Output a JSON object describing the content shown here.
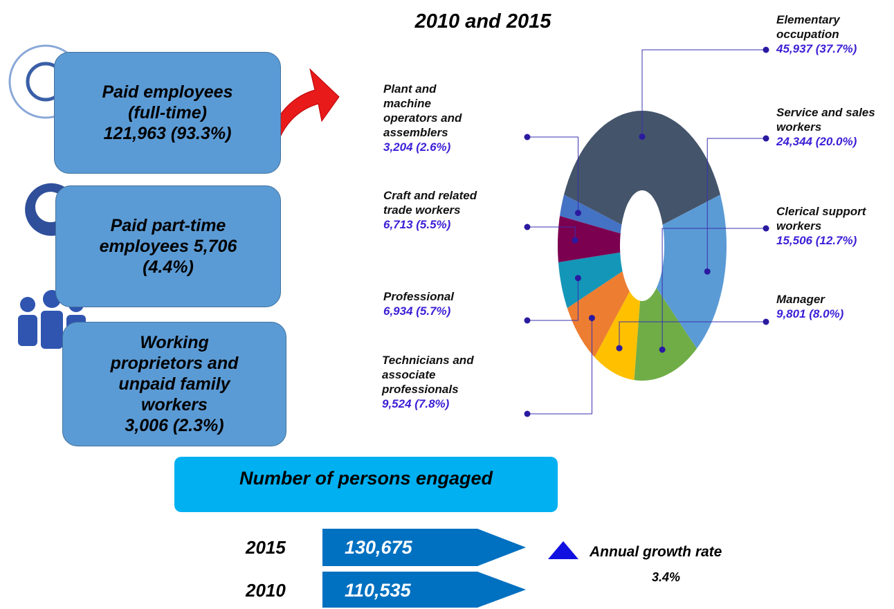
{
  "boxes": [
    {
      "label": "Paid employees (full-time)",
      "value": "121,963 (93.3%)"
    },
    {
      "label": "Paid part-time employees 5,706",
      "value": "(4.4%)"
    },
    {
      "label": "Working proprietors and unpaid family workers",
      "value": "3,006 (2.3%)"
    }
  ],
  "persons_engaged": {
    "title": "Number of persons engaged",
    "rows": [
      {
        "year": "2015",
        "value": "130,675"
      },
      {
        "year": "2010",
        "value": "110,535"
      }
    ],
    "growth_label": "Annual growth rate",
    "growth_value": "3.4%"
  },
  "chart_data": {
    "type": "pie",
    "title": "2010 and 2015",
    "categories": [
      "Elementary occupation",
      "Service and sales workers",
      "Clerical support workers",
      "Manager",
      "Technicians and associate professionals",
      "Professional",
      "Craft and related trade workers",
      "Plant and machine operators and assemblers"
    ],
    "values": [
      45937,
      24344,
      15506,
      9801,
      9524,
      6934,
      6713,
      3204
    ],
    "value_labels": [
      "45,937 (37.7%)",
      "24,344 (20.0%)",
      "15,506 (12.7%)",
      "9,801 (8.0%)",
      "9,524 (7.8%)",
      "6,934 (5.7%)",
      "6,713 (5.5%)",
      "3,204 (2.6%)"
    ],
    "colors": [
      "#44546a",
      "#5b9bd5",
      "#70ad47",
      "#ffc000",
      "#ed7d31",
      "#1496b8",
      "#7b0050",
      "#4472c4"
    ]
  }
}
